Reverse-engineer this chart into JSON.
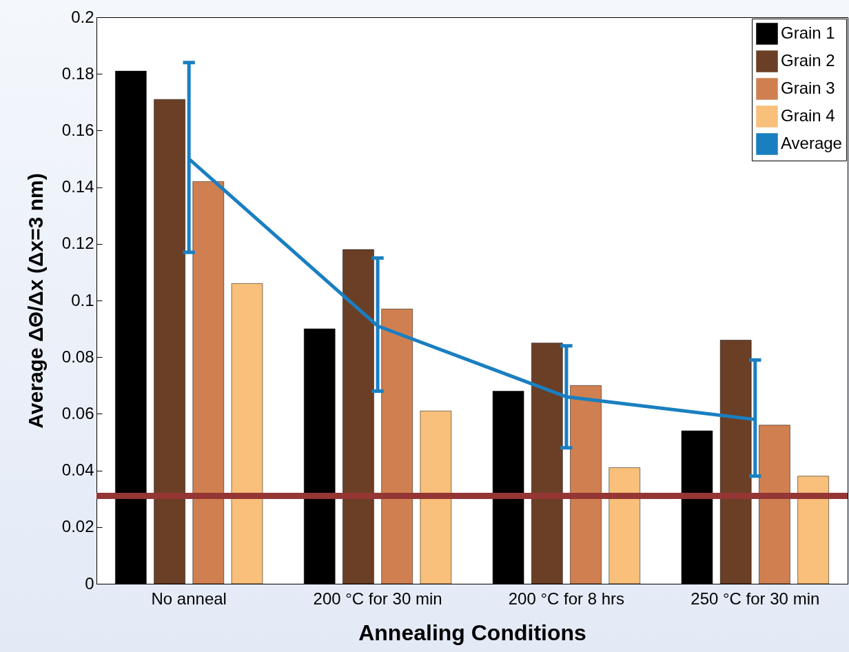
{
  "chart_data": {
    "type": "bar",
    "xlabel": "Annealing Conditions",
    "ylabel": "Average ΔΘ/Δx (Δx=3 nm)",
    "categories": [
      "No anneal",
      "200 °C for 30 min",
      "200 °C for 8 hrs",
      "250 °C for 30 min"
    ],
    "series": [
      {
        "name": "Grain 1",
        "color": "#000000",
        "values": [
          0.181,
          0.09,
          0.068,
          0.054
        ]
      },
      {
        "name": "Grain 2",
        "color": "#6b3f26",
        "values": [
          0.171,
          0.118,
          0.085,
          0.086
        ]
      },
      {
        "name": "Grain 3",
        "color": "#d08050",
        "values": [
          0.142,
          0.097,
          0.07,
          0.056
        ]
      },
      {
        "name": "Grain 4",
        "color": "#f8c07a",
        "values": [
          0.106,
          0.061,
          0.041,
          0.038
        ]
      },
      {
        "name": "Average",
        "type": "line",
        "color": "#1a7fc1",
        "values": [
          0.15,
          0.091,
          0.066,
          0.058
        ],
        "errors": [
          [
            0.117,
            0.184
          ],
          [
            0.068,
            0.115
          ],
          [
            0.048,
            0.084
          ],
          [
            0.038,
            0.079
          ]
        ]
      }
    ],
    "ylim": [
      0,
      0.2
    ],
    "yticks": [
      0,
      0.02,
      0.04,
      0.06,
      0.08,
      0.1,
      0.12,
      0.14,
      0.16,
      0.18,
      0.2
    ],
    "ref_lines": [
      {
        "axis": "y",
        "value": 0.031,
        "color": "#943634"
      }
    ],
    "legend": "top right"
  }
}
